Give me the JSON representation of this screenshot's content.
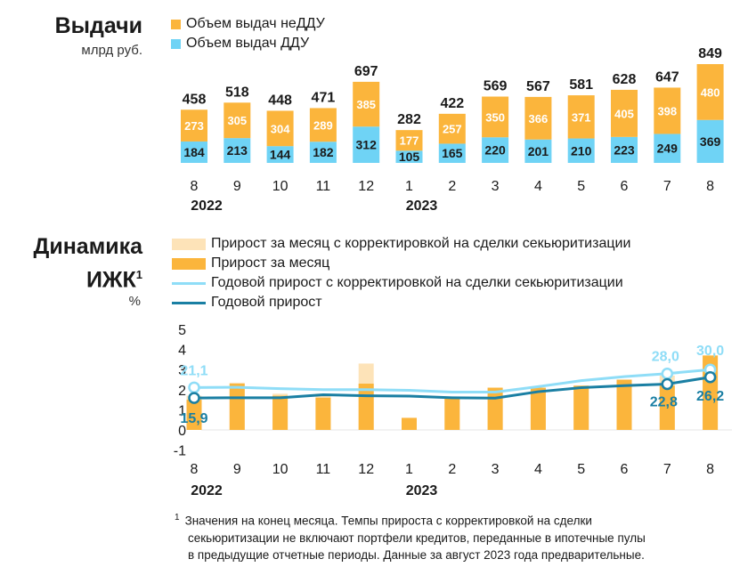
{
  "colors": {
    "non_ddu": "#FBB53C",
    "ddu": "#6FD3F5",
    "adj_monthly": "#FDE3B8",
    "monthly": "#FBB53C",
    "adj_annual": "#8FDDF7",
    "annual": "#1A7FA3"
  },
  "top": {
    "title": "Выдачи",
    "unit": "млрд руб.",
    "legend_non_ddu": "Объем выдач неДДУ",
    "legend_ddu": "Объем выдач ДДУ"
  },
  "bottom": {
    "title_line1": "Динамика",
    "title_line2": "ИЖК",
    "title_sup": "1",
    "unit": "%",
    "legend": [
      "Прирост за месяц с корректировкой на сделки секьюритизации",
      "Прирост за месяц",
      "Годовой прирост с корректировкой на сделки секьюритизации",
      "Годовой прирост"
    ]
  },
  "footnote": {
    "mark": "1",
    "lines": [
      "Значения на конец месяца. Темпы прироста с корректировкой на сделки",
      "секьюритизации не включают портфели кредитов, переданные в ипотечные пулы",
      "в предыдущие отчетные периоды. Данные за август 2023 года предварительные."
    ]
  },
  "chart_data": [
    {
      "type": "bar",
      "stacked": true,
      "title": "Выдачи",
      "ylabel": "млрд руб.",
      "categories": [
        "8",
        "9",
        "10",
        "11",
        "12",
        "1",
        "2",
        "3",
        "4",
        "5",
        "6",
        "7",
        "8"
      ],
      "year_labels": [
        {
          "index": 0,
          "label": "2022"
        },
        {
          "index": 5,
          "label": "2023"
        }
      ],
      "totals": [
        "458",
        "518",
        "448",
        "471",
        "697",
        "282",
        "422",
        "569",
        "567",
        "581",
        "628",
        "647",
        "849"
      ],
      "series": [
        {
          "name": "Объем выдач ДДУ",
          "values": [
            184,
            213,
            144,
            182,
            312,
            105,
            165,
            220,
            201,
            210,
            223,
            249,
            369
          ],
          "labels": [
            "184",
            "213",
            "144",
            "182",
            "312",
            "105",
            "165",
            "220",
            "201",
            "210",
            "223",
            "249",
            "369"
          ]
        },
        {
          "name": "Объем выдач неДДУ",
          "values": [
            273,
            305,
            304,
            289,
            385,
            177,
            257,
            350,
            366,
            371,
            405,
            398,
            480
          ],
          "labels": [
            "273",
            "305",
            "304",
            "289",
            "385",
            "177",
            "257",
            "350",
            "366",
            "371",
            "405",
            "398",
            "480"
          ]
        }
      ]
    },
    {
      "type": "bar",
      "title": "Динамика ИЖК",
      "ylabel": "%",
      "categories": [
        "8",
        "9",
        "10",
        "11",
        "12",
        "1",
        "2",
        "3",
        "4",
        "5",
        "6",
        "7",
        "8"
      ],
      "year_labels": [
        {
          "index": 0,
          "label": "2022"
        },
        {
          "index": 5,
          "label": "2023"
        }
      ],
      "ylim": [
        -1,
        5
      ],
      "yticks": [
        "-1",
        "0",
        "1",
        "2",
        "3",
        "4",
        "5"
      ],
      "series": [
        {
          "name": "Прирост за месяц с корректировкой на сделки секьюритизации",
          "type": "bar",
          "values": [
            1.7,
            2.35,
            1.8,
            1.8,
            3.3,
            0.6,
            1.6,
            2.1,
            2.1,
            2.2,
            2.5,
            2.7,
            3.7
          ]
        },
        {
          "name": "Прирост за месяц",
          "type": "bar",
          "values": [
            1.5,
            2.3,
            1.7,
            1.6,
            2.3,
            0.6,
            1.6,
            2.1,
            2.1,
            2.2,
            2.5,
            2.2,
            3.7
          ]
        },
        {
          "name": "Годовой прирост с корректировкой на сделки секьюритизации",
          "type": "line",
          "values": [
            2.11,
            2.12,
            2.05,
            2.0,
            2.0,
            1.97,
            1.88,
            1.88,
            2.15,
            2.45,
            2.65,
            2.8,
            3.0
          ],
          "point_labels": [
            {
              "index": 0,
              "label": "21,1"
            },
            {
              "index": 11,
              "label": "28,0"
            },
            {
              "index": 12,
              "label": "30,0"
            }
          ]
        },
        {
          "name": "Годовой прирост",
          "type": "line",
          "values": [
            1.59,
            1.6,
            1.6,
            1.75,
            1.7,
            1.68,
            1.6,
            1.58,
            1.9,
            2.1,
            2.2,
            2.28,
            2.62
          ],
          "point_labels": [
            {
              "index": 0,
              "label": "15,9"
            },
            {
              "index": 11,
              "label": "22,8"
            },
            {
              "index": 12,
              "label": "26,2"
            }
          ]
        }
      ]
    }
  ]
}
